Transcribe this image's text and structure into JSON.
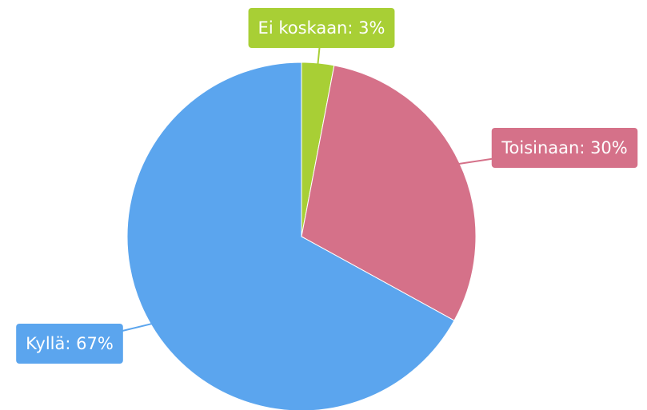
{
  "chart_data": {
    "type": "pie",
    "values": [
      3,
      30,
      67
    ],
    "value_labels": [
      "Ei koskaan: 3%",
      "Toisinaan: 30%",
      "Kyllä: 67%"
    ],
    "colors": [
      "#a8cf35",
      "#d57189",
      "#5ba5ee"
    ]
  }
}
